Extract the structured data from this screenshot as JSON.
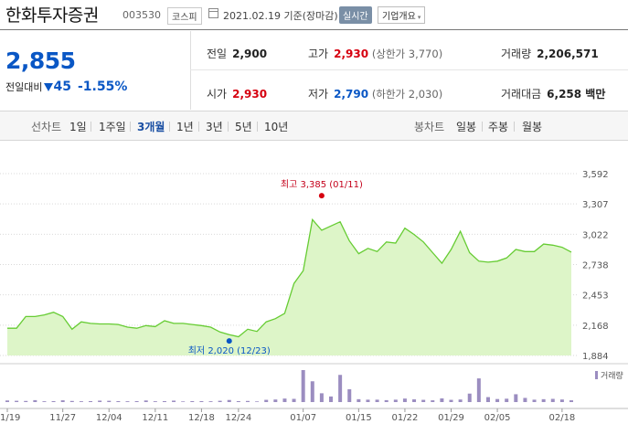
{
  "header": {
    "name": "한화투자증권",
    "code": "003530",
    "market": "코스피",
    "date": "2021.02.19 기준(장마감)",
    "realtime": "실시간",
    "corp_info": "기업개요",
    "caret": "▾"
  },
  "quote": {
    "price": "2,855",
    "change_label": "전일대비",
    "change": "45",
    "change_pct": "-1.55%",
    "direction": "down"
  },
  "stats": {
    "prev_label": "전일",
    "prev": "2,900",
    "high_label": "고가",
    "high": "2,930",
    "high_limit": "(상한가 3,770)",
    "volume_label": "거래량",
    "volume": "2,206,571",
    "open_label": "시가",
    "open": "2,930",
    "low_label": "저가",
    "low": "2,790",
    "low_limit": "(하한가 2,030)",
    "amount_label": "거래대금",
    "amount": "6,258 백만"
  },
  "periods": {
    "line_title": "선차트",
    "line_items": [
      "1일",
      "1주일",
      "3개월",
      "1년",
      "3년",
      "5년",
      "10년"
    ],
    "selected": "3개월",
    "candle_title": "봉차트",
    "candle_items": [
      "일봉",
      "주봉",
      "월봉"
    ]
  },
  "colors": {
    "price_down": "#0a57c5",
    "price_up": "#d6000f",
    "area_fill": "#ddf5c8",
    "area_line": "#66cc33",
    "volume_bar": "#9b8dc0"
  },
  "chart_data": {
    "type": "area",
    "price": {
      "x": [
        "11/19",
        "11/20",
        "11/23",
        "11/24",
        "11/25",
        "11/26",
        "11/27",
        "11/30",
        "12/01",
        "12/02",
        "12/03",
        "12/04",
        "12/07",
        "12/08",
        "12/09",
        "12/10",
        "12/11",
        "12/14",
        "12/15",
        "12/16",
        "12/17",
        "12/18",
        "12/21",
        "12/22",
        "12/23",
        "12/24",
        "12/28",
        "12/29",
        "12/30",
        "01/04",
        "01/05",
        "01/06",
        "01/07",
        "01/08",
        "01/11",
        "01/12",
        "01/13",
        "01/14",
        "01/15",
        "01/18",
        "01/19",
        "01/20",
        "01/21",
        "01/22",
        "01/25",
        "01/26",
        "01/27",
        "01/28",
        "01/29",
        "02/01",
        "02/02",
        "02/03",
        "02/04",
        "02/05",
        "02/08",
        "02/09",
        "02/10",
        "02/15",
        "02/16",
        "02/17",
        "02/18",
        "02/19"
      ],
      "y": [
        2140,
        2140,
        2250,
        2250,
        2265,
        2290,
        2250,
        2130,
        2200,
        2185,
        2180,
        2180,
        2175,
        2150,
        2140,
        2165,
        2155,
        2210,
        2185,
        2185,
        2175,
        2165,
        2150,
        2105,
        2080,
        2060,
        2130,
        2110,
        2200,
        2230,
        2280,
        2560,
        2680,
        3160,
        3060,
        3100,
        3140,
        2960,
        2840,
        2890,
        2860,
        2950,
        2940,
        3080,
        3020,
        2950,
        2850,
        2750,
        2880,
        3050,
        2850,
        2770,
        2760,
        2770,
        2800,
        2880,
        2860,
        2860,
        2930,
        2920,
        2900,
        2855
      ],
      "ylim": [
        1884,
        3592
      ],
      "yticks": [
        "3,592",
        "3,307",
        "3,022",
        "2,738",
        "2,453",
        "2,168",
        "1,884"
      ],
      "xticks": [
        "11/19",
        "11/27",
        "12/04",
        "12/11",
        "12/18",
        "12/24",
        "01/07",
        "01/15",
        "01/22",
        "01/29",
        "02/05",
        "02/18"
      ],
      "high_label": "최고 3,385 (01/11)",
      "high_value": 3385,
      "low_label": "최저 2,020 (12/23)",
      "low_value": 2020
    },
    "volume": {
      "legend": "거래량",
      "values": [
        1.0,
        0.8,
        0.7,
        1.2,
        0.5,
        0.6,
        1.1,
        0.7,
        0.5,
        0.6,
        0.9,
        0.8,
        0.6,
        0.5,
        0.6,
        1.0,
        0.5,
        0.6,
        0.9,
        0.4,
        0.6,
        0.6,
        0.5,
        0.8,
        1.3,
        0.6,
        0.7,
        0.4,
        1.4,
        1.6,
        2.2,
        2.0,
        20.0,
        13.0,
        5.5,
        3.5,
        17.0,
        8.0,
        1.8,
        1.5,
        1.5,
        1.2,
        1.5,
        2.2,
        1.7,
        1.4,
        1.1,
        2.3,
        1.4,
        1.6,
        5.3,
        14.8,
        3.1,
        1.9,
        2.1,
        4.9,
        2.6,
        1.5,
        1.8,
        2.0,
        1.6,
        1.1
      ]
    }
  }
}
